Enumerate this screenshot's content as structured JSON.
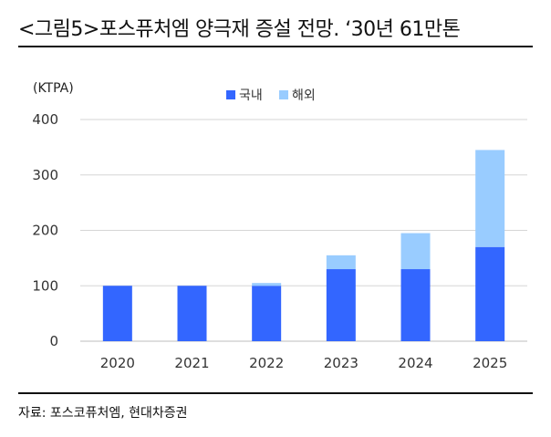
{
  "figure": {
    "title": "<그림5>포스퓨처엠 양극재 증설 전망. ‘30년 61만톤",
    "source": "자료: 포스코퓨처엠, 현대차증권"
  },
  "chart_data": {
    "type": "bar",
    "stacked": true,
    "unit_label": "(KTPA)",
    "categories": [
      "2020",
      "2021",
      "2022",
      "2023",
      "2024",
      "2025"
    ],
    "series": [
      {
        "name": "국내",
        "color": "#3366ff",
        "values": [
          100,
          100,
          100,
          130,
          130,
          170
        ]
      },
      {
        "name": "해외",
        "color": "#99ccff",
        "values": [
          0,
          0,
          5,
          25,
          65,
          175
        ]
      }
    ],
    "ylim": [
      0,
      400
    ],
    "yticks": [
      0,
      100,
      200,
      300,
      400
    ],
    "grid": true,
    "legend": "top-center"
  }
}
